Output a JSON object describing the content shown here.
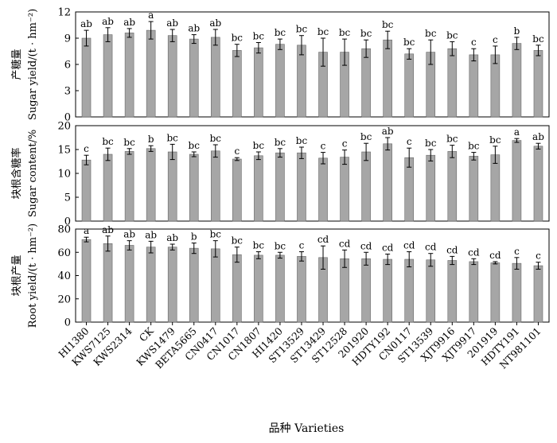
{
  "chart_data": {
    "type": "bar",
    "categories": [
      "HI1380",
      "KWS7125",
      "KWS2314",
      "CK",
      "KWS1479",
      "BETA5665",
      "CN0417",
      "CN1017",
      "CN1807",
      "HI1420",
      "ST13529",
      "ST13429",
      "ST12528",
      "201920",
      "HDTY192",
      "CN0117",
      "ST13539",
      "XJT9916",
      "XJT9917",
      "201919",
      "HDTY191",
      "NT981101"
    ],
    "xlabel": "品种 Varieties",
    "panels": [
      {
        "id": "sugar-yield",
        "ylabel_cn": "产糖量",
        "ylabel_en": "Sugar yield/(t · hm⁻²)",
        "ylim": [
          0,
          12
        ],
        "yticks": [
          0,
          3,
          6,
          9,
          12
        ],
        "values": [
          9.0,
          9.4,
          9.6,
          9.9,
          9.3,
          8.9,
          9.1,
          7.6,
          7.9,
          8.3,
          8.2,
          7.4,
          7.4,
          7.8,
          8.8,
          7.2,
          7.4,
          7.8,
          7.1,
          7.1,
          8.4,
          7.6
        ],
        "errors": [
          0.9,
          0.8,
          0.5,
          1.0,
          0.7,
          0.5,
          0.9,
          0.7,
          0.6,
          0.6,
          1.1,
          1.6,
          1.5,
          1.0,
          1.0,
          0.6,
          1.4,
          0.8,
          0.7,
          1.0,
          0.7,
          0.6
        ],
        "labels": [
          "ab",
          "ab",
          "ab",
          "a",
          "ab",
          "ab",
          "ab",
          "bc",
          "bc",
          "bc",
          "bc",
          "bc",
          "bc",
          "bc",
          "bc",
          "bc",
          "bc",
          "bc",
          "c",
          "c",
          "b",
          "bc"
        ]
      },
      {
        "id": "sugar-content",
        "ylabel_cn": "块根含糖率",
        "ylabel_en": "Sugar content/%",
        "ylim": [
          0,
          20
        ],
        "yticks": [
          0,
          5,
          10,
          15,
          20
        ],
        "values": [
          12.8,
          14.0,
          14.6,
          15.2,
          14.5,
          14.0,
          14.7,
          13.0,
          13.7,
          14.3,
          14.3,
          13.2,
          13.4,
          14.5,
          16.2,
          13.3,
          13.8,
          14.6,
          13.6,
          13.9,
          16.9,
          15.7
        ],
        "errors": [
          1.0,
          1.3,
          0.6,
          0.6,
          1.6,
          0.5,
          1.3,
          0.3,
          0.8,
          0.9,
          1.2,
          1.2,
          1.5,
          1.8,
          1.3,
          2.0,
          1.2,
          1.3,
          0.8,
          1.8,
          0.4,
          0.6
        ],
        "labels": [
          "c",
          "bc",
          "bc",
          "b",
          "bc",
          "bc",
          "bc",
          "c",
          "bc",
          "bc",
          "bc",
          "c",
          "c",
          "bc",
          "ab",
          "c",
          "bc",
          "bc",
          "bc",
          "bc",
          "a",
          "ab"
        ]
      },
      {
        "id": "root-yield",
        "ylabel_cn": "块根产量",
        "ylabel_en": "Root yield/(t · hm⁻²)",
        "ylim": [
          0,
          80
        ],
        "yticks": [
          0,
          20,
          40,
          60,
          80
        ],
        "values": [
          71.0,
          67.5,
          66.0,
          64.5,
          64.5,
          63.5,
          63.0,
          58.0,
          57.5,
          57.5,
          56.5,
          55.5,
          54.5,
          54.5,
          54.0,
          54.0,
          53.5,
          53.0,
          52.0,
          51.0,
          50.5,
          48.5
        ],
        "errors": [
          2.0,
          6.5,
          4.0,
          5.0,
          2.5,
          4.5,
          7.0,
          6.5,
          3.0,
          2.5,
          4.0,
          10.0,
          7.5,
          5.5,
          4.5,
          6.5,
          5.5,
          3.5,
          2.5,
          1.0,
          5.0,
          3.0
        ],
        "labels": [
          "a",
          "ab",
          "ab",
          "ab",
          "ab",
          "b",
          "bc",
          "bc",
          "bc",
          "bc",
          "c",
          "cd",
          "cd",
          "cd",
          "cd",
          "cd",
          "cd",
          "cd",
          "cd",
          "cd",
          "c",
          "c"
        ]
      }
    ]
  },
  "colors": {
    "bar_fill": "#a6a6a6",
    "bar_stroke": "#666666",
    "axis": "#000000"
  }
}
